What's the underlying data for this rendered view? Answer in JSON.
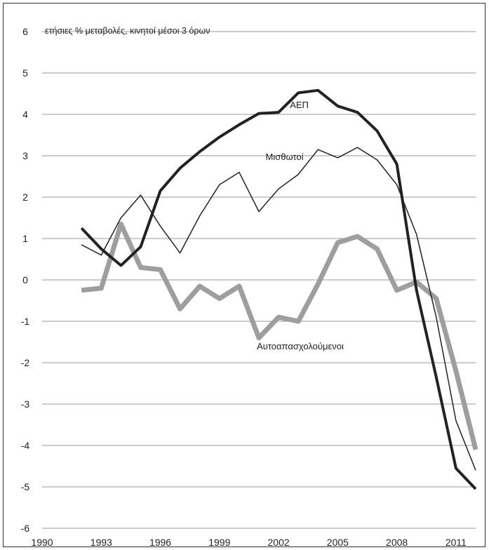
{
  "chart_data": {
    "type": "line",
    "title": "",
    "subtitle": "ετήσιες % μεταβολές, κινητοί μέσοι 3 όρων",
    "xlabel": "",
    "ylabel": "",
    "xlim": [
      1990,
      2012
    ],
    "ylim": [
      -6,
      6
    ],
    "x_ticks": [
      "1990",
      "1993",
      "1996",
      "1999",
      "2002",
      "2005",
      "2008",
      "2011"
    ],
    "y_ticks": [
      "6",
      "5",
      "4",
      "3",
      "2",
      "1",
      "0",
      "-1",
      "-2",
      "-3",
      "-4",
      "-5",
      "-6"
    ],
    "grid": "horizontal",
    "x": [
      1992,
      1993,
      1994,
      1995,
      1996,
      1997,
      1998,
      1999,
      2000,
      2001,
      2002,
      2003,
      2004,
      2005,
      2006,
      2007,
      2008,
      2009,
      2010,
      2011,
      2012
    ],
    "series": [
      {
        "name": "ΑΕΠ",
        "color": "#222222",
        "width": 4,
        "values": [
          1.25,
          0.75,
          0.35,
          0.8,
          2.15,
          2.7,
          3.1,
          3.45,
          3.75,
          4.02,
          4.05,
          4.52,
          4.58,
          4.2,
          4.05,
          3.6,
          2.8,
          -0.25,
          -2.35,
          -4.55,
          -5.05
        ]
      },
      {
        "name": "Μισθωτοί",
        "color": "#222222",
        "width": 1.5,
        "values": [
          0.85,
          0.6,
          1.5,
          2.05,
          1.3,
          0.65,
          1.55,
          2.3,
          2.6,
          1.65,
          2.2,
          2.55,
          3.15,
          2.95,
          3.2,
          2.9,
          2.3,
          1.1,
          -0.9,
          -3.4,
          -4.6
        ]
      },
      {
        "name": "Αυτοαπασχολούμενοι",
        "color": "#9e9e9e",
        "width": 7,
        "values": [
          -0.25,
          -0.2,
          1.35,
          0.3,
          0.25,
          -0.7,
          -0.15,
          -0.45,
          -0.15,
          -1.4,
          -0.9,
          -1.0,
          -0.1,
          0.9,
          1.05,
          0.75,
          -0.25,
          -0.05,
          -0.45,
          -2.2,
          -4.1
        ]
      }
    ]
  }
}
